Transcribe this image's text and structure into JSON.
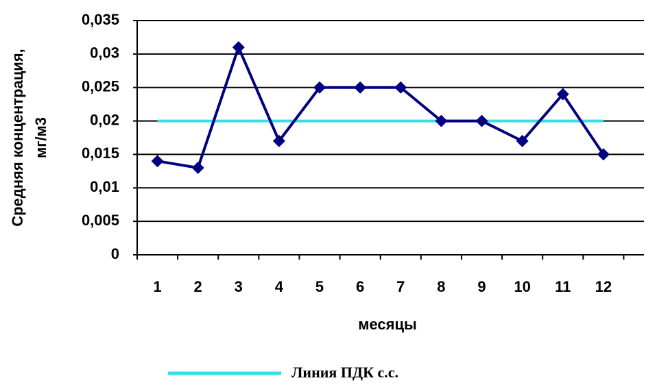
{
  "chart_data": {
    "type": "line",
    "xlabel": "месяцы",
    "ylabel": [
      "Средняя концентрация,",
      "мг/м3"
    ],
    "categories": [
      "1",
      "2",
      "3",
      "4",
      "5",
      "6",
      "7",
      "8",
      "9",
      "10",
      "11",
      "12"
    ],
    "series": [
      {
        "color": "#000080",
        "marker": "diamond",
        "values": [
          0.014,
          0.013,
          0.031,
          0.017,
          0.025,
          0.025,
          0.025,
          0.02,
          0.02,
          0.017,
          0.024,
          0.015
        ]
      },
      {
        "name": "Линия ПДК с.с.",
        "color": "#33e0e8",
        "values": [
          0.02,
          0.02,
          0.02,
          0.02,
          0.02,
          0.02,
          0.02,
          0.02,
          0.02,
          0.02,
          0.02,
          0.02
        ]
      }
    ],
    "ylim": [
      0,
      0.035
    ],
    "yticks": [
      0,
      {
        "value": 0.005,
        "label": "0,005"
      },
      {
        "value": 0.01,
        "label": "0,01"
      },
      {
        "value": 0.015,
        "label": "0,015"
      },
      {
        "value": 0.02,
        "label": "0,02"
      },
      {
        "value": 0.025,
        "label": "0,025"
      },
      {
        "value": 0.03,
        "label": "0,03"
      },
      {
        "value": 0.035,
        "label": "0,035"
      }
    ],
    "grid": true,
    "legend": "bottom"
  }
}
